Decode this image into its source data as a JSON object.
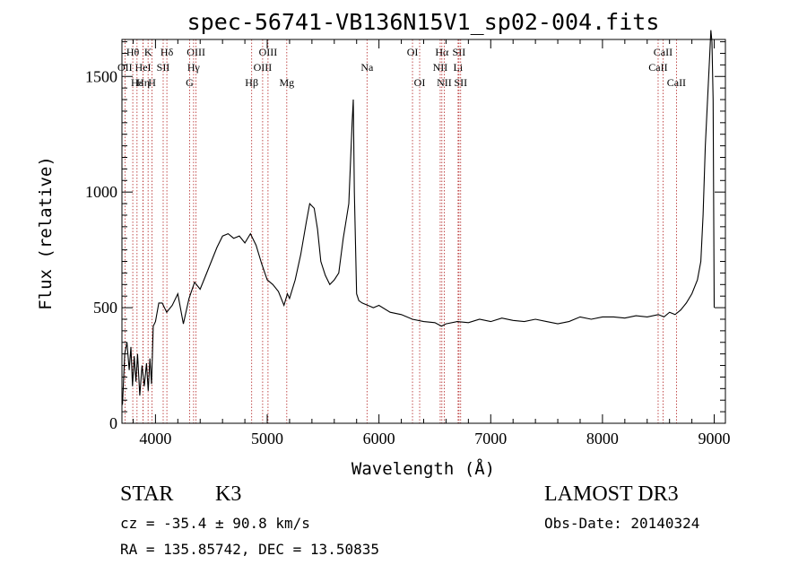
{
  "chart_data": {
    "type": "line",
    "title": "spec-56741-VB136N15V1_sp02-004.fits",
    "xlabel": "Wavelength (Å)",
    "ylabel": "Flux (relative)",
    "xlim": [
      3700,
      9100
    ],
    "ylim": [
      0,
      1660
    ],
    "xticks": [
      4000,
      5000,
      6000,
      7000,
      8000,
      9000
    ],
    "yticks": [
      0,
      500,
      1000,
      1500
    ],
    "ytick_labels": [
      "0",
      "500",
      "1000",
      "1500"
    ],
    "grid": false,
    "series": [
      {
        "name": "spectrum",
        "x": [
          3705,
          3725,
          3745,
          3765,
          3780,
          3795,
          3810,
          3825,
          3840,
          3860,
          3880,
          3900,
          3920,
          3935,
          3950,
          3965,
          3980,
          4000,
          4030,
          4060,
          4100,
          4150,
          4200,
          4250,
          4300,
          4350,
          4400,
          4450,
          4500,
          4550,
          4600,
          4650,
          4700,
          4750,
          4800,
          4850,
          4900,
          4950,
          5000,
          5050,
          5100,
          5150,
          5180,
          5200,
          5250,
          5300,
          5350,
          5380,
          5420,
          5450,
          5480,
          5520,
          5560,
          5600,
          5640,
          5680,
          5700,
          5730,
          5760,
          5770,
          5780,
          5800,
          5820,
          5850,
          5900,
          5950,
          6000,
          6100,
          6200,
          6300,
          6400,
          6500,
          6560,
          6600,
          6700,
          6800,
          6900,
          7000,
          7100,
          7200,
          7300,
          7400,
          7500,
          7600,
          7700,
          7800,
          7900,
          8000,
          8100,
          8200,
          8300,
          8400,
          8500,
          8550,
          8600,
          8650,
          8700,
          8750,
          8800,
          8850,
          8880,
          8900,
          8920,
          8940,
          8960,
          8970,
          8980,
          8990,
          9000
        ],
        "y": [
          80,
          300,
          350,
          230,
          330,
          160,
          290,
          180,
          300,
          120,
          250,
          160,
          260,
          140,
          280,
          170,
          420,
          440,
          520,
          520,
          480,
          510,
          560,
          430,
          540,
          610,
          580,
          640,
          700,
          760,
          810,
          820,
          800,
          810,
          780,
          820,
          770,
          690,
          620,
          600,
          570,
          510,
          560,
          540,
          620,
          730,
          870,
          950,
          930,
          840,
          700,
          640,
          600,
          620,
          650,
          800,
          860,
          950,
          1300,
          1400,
          1000,
          560,
          530,
          520,
          510,
          500,
          510,
          480,
          470,
          450,
          440,
          435,
          420,
          430,
          440,
          435,
          450,
          440,
          455,
          445,
          440,
          450,
          440,
          430,
          440,
          460,
          450,
          460,
          460,
          455,
          465,
          460,
          470,
          460,
          480,
          470,
          490,
          520,
          560,
          620,
          700,
          900,
          1200,
          1400,
          1600,
          1700,
          1650,
          1400,
          500
        ]
      }
    ],
    "line_markers": {
      "row1": [
        {
          "label": "Hθ",
          "x": 3797
        },
        {
          "label": "K",
          "x": 3934
        },
        {
          "label": "Hδ",
          "x": 4102
        },
        {
          "label": "OIII",
          "x": 4363
        },
        {
          "label": "OIII",
          "x": 5007
        },
        {
          "label": "OI",
          "x": 6300
        },
        {
          "label": "Hα",
          "x": 6563
        },
        {
          "label": "SII",
          "x": 6716
        },
        {
          "label": "CaII",
          "x": 8542
        }
      ],
      "row2": [
        {
          "label": "OII",
          "x": 3727
        },
        {
          "label": "HeI",
          "x": 3889
        },
        {
          "label": "SII",
          "x": 4069
        },
        {
          "label": "Hγ",
          "x": 4341
        },
        {
          "label": "OIII",
          "x": 4959
        },
        {
          "label": "Na",
          "x": 5893
        },
        {
          "label": "NII",
          "x": 6548
        },
        {
          "label": "Li",
          "x": 6708
        },
        {
          "label": "CaII",
          "x": 8498
        }
      ],
      "row3": [
        {
          "label": "Hε",
          "x": 3835
        },
        {
          "label": "Hη",
          "x": 3889
        },
        {
          "label": "H",
          "x": 3969
        },
        {
          "label": "G",
          "x": 4305
        },
        {
          "label": "Hβ",
          "x": 4861
        },
        {
          "label": "Mg",
          "x": 5175
        },
        {
          "label": "OI",
          "x": 6364
        },
        {
          "label": "NII",
          "x": 6584
        },
        {
          "label": "SII",
          "x": 6731
        },
        {
          "label": "CaII",
          "x": 8662
        }
      ]
    }
  },
  "info": {
    "object_class": "STAR",
    "subclass": "K3",
    "survey": "LAMOST DR3",
    "cz": "cz = -35.4 ± 90.8 km/s",
    "obs_date": "Obs-Date: 20140324",
    "coords": "RA = 135.85742, DEC =  13.50835"
  }
}
